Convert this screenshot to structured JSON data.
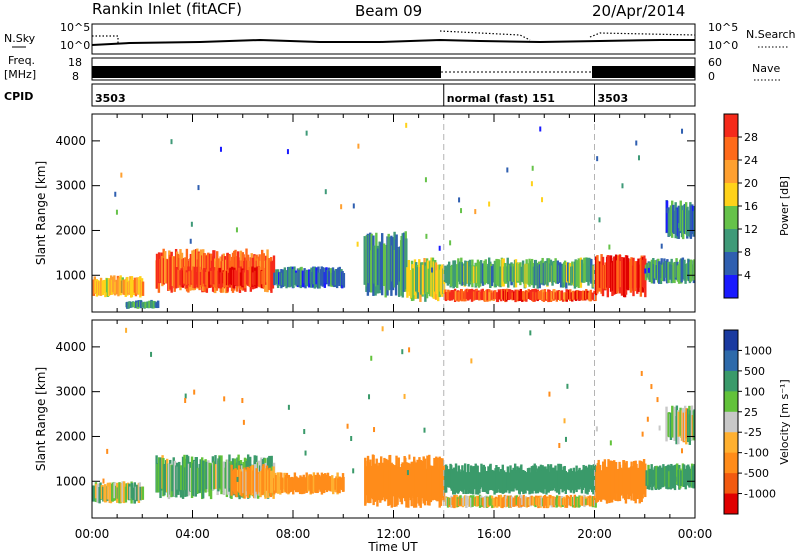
{
  "header": {
    "station": "Rankin Inlet (fitACF)",
    "beam": "Beam 09",
    "date": "20/Apr/2014"
  },
  "sky_panel": {
    "left_label": "N.Sky",
    "right_label": "N.Search",
    "left_ticks": [
      "10^5",
      "10^0"
    ],
    "right_ticks": [
      "10^5",
      "10^0"
    ]
  },
  "freq_panel": {
    "left_label": "Freq.",
    "left_unit": "[MHz]",
    "right_label": "Nave",
    "left_ticks": [
      "18",
      "8"
    ],
    "right_ticks": [
      "60",
      "0"
    ]
  },
  "cpid_panel": {
    "label": "CPID",
    "segments": [
      {
        "start_hour": 0,
        "text": "3503"
      },
      {
        "start_hour": 14,
        "text": "normal (fast) 151"
      },
      {
        "start_hour": 20,
        "text": "3503"
      }
    ]
  },
  "time_axis": {
    "label": "Time UT",
    "ticks": [
      "00:00",
      "04:00",
      "08:00",
      "12:00",
      "16:00",
      "20:00",
      "00:00"
    ]
  },
  "colors": {
    "power_scale": [
      "#1a1aff",
      "#2f5fb0",
      "#3f9a78",
      "#66c24a",
      "#ffd21a",
      "#ffa030",
      "#ff6a1a",
      "#f52a1a",
      "#e00000"
    ],
    "velocity_scale": [
      "#e00000",
      "#f25a10",
      "#ff8c1a",
      "#ffb030",
      "#c8c8c8",
      "#62c23a",
      "#3a9a6a",
      "#2e6aaa",
      "#1a3aa0"
    ],
    "marker_line": "#b4b4b4"
  },
  "chart_data": [
    {
      "type": "heatmap",
      "name": "power",
      "xlabel": "",
      "ylabel": "Slant Range [km]",
      "yticks": [
        "1000",
        "2000",
        "3000",
        "4000"
      ],
      "ylim": [
        180,
        4600
      ],
      "xlim_hours": [
        0,
        24
      ],
      "colorbar": {
        "label": "Power [dB]",
        "ticks": [
          "4",
          "8",
          "12",
          "16",
          "20",
          "24",
          "28"
        ],
        "range": [
          0,
          32
        ]
      },
      "regions": [
        {
          "t": [
            0.0,
            2.0
          ],
          "r": [
            500,
            1000
          ],
          "value": 18
        },
        {
          "t": [
            2.5,
            7.2
          ],
          "r": [
            600,
            1600
          ],
          "value": 24
        },
        {
          "t": [
            3.2,
            6.8
          ],
          "r": [
            700,
            1200
          ],
          "value": 27
        },
        {
          "t": [
            7.2,
            10.0
          ],
          "r": [
            700,
            1200
          ],
          "value": 6
        },
        {
          "t": [
            1.3,
            2.6
          ],
          "r": [
            250,
            450
          ],
          "value": 8
        },
        {
          "t": [
            10.8,
            12.5
          ],
          "r": [
            500,
            2000
          ],
          "value": 8
        },
        {
          "t": [
            12.5,
            14.0
          ],
          "r": [
            400,
            1400
          ],
          "value": 14
        },
        {
          "t": [
            14.0,
            20.0
          ],
          "r": [
            400,
            700
          ],
          "value": 26
        },
        {
          "t": [
            14.0,
            20.0
          ],
          "r": [
            700,
            1400
          ],
          "value": 10
        },
        {
          "t": [
            20.0,
            22.0
          ],
          "r": [
            500,
            1500
          ],
          "value": 28
        },
        {
          "t": [
            22.0,
            24.0
          ],
          "r": [
            800,
            1400
          ],
          "value": 8
        },
        {
          "t": [
            22.8,
            24.0
          ],
          "r": [
            1800,
            2700
          ],
          "value": 6
        }
      ]
    },
    {
      "type": "heatmap",
      "name": "velocity",
      "xlabel": "Time UT",
      "ylabel": "Slant Range [km]",
      "yticks": [
        "1000",
        "2000",
        "3000",
        "4000"
      ],
      "ylim": [
        180,
        4600
      ],
      "xlim_hours": [
        0,
        24
      ],
      "colorbar": {
        "label": "Velocity [m s⁻¹]",
        "ticks": [
          "1000",
          "500",
          "100",
          "25",
          "-25",
          "-100",
          "-500",
          "-1000"
        ]
      },
      "regions": [
        {
          "t": [
            0.0,
            2.0
          ],
          "r": [
            500,
            1000
          ],
          "value": 50
        },
        {
          "t": [
            2.5,
            7.2
          ],
          "r": [
            600,
            1600
          ],
          "value": 120
        },
        {
          "t": [
            5.5,
            7.2
          ],
          "r": [
            600,
            1400
          ],
          "value": -150
        },
        {
          "t": [
            7.2,
            10.0
          ],
          "r": [
            700,
            1200
          ],
          "value": -200
        },
        {
          "t": [
            10.8,
            14.0
          ],
          "r": [
            400,
            1600
          ],
          "value": -250
        },
        {
          "t": [
            14.0,
            20.0
          ],
          "r": [
            400,
            700
          ],
          "value": -60
        },
        {
          "t": [
            14.0,
            20.0
          ],
          "r": [
            700,
            1400
          ],
          "value": 300
        },
        {
          "t": [
            20.0,
            22.0
          ],
          "r": [
            500,
            1500
          ],
          "value": -300
        },
        {
          "t": [
            22.0,
            24.0
          ],
          "r": [
            800,
            1400
          ],
          "value": 200
        },
        {
          "t": [
            22.8,
            24.0
          ],
          "r": [
            1800,
            2700
          ],
          "value": 0
        }
      ]
    }
  ]
}
